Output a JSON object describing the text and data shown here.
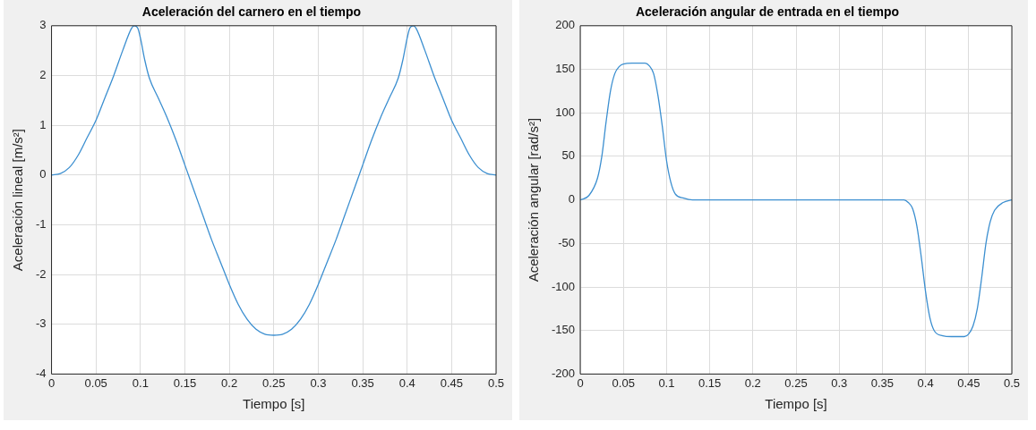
{
  "chart_data": [
    {
      "type": "line",
      "title": "Aceleración del carnero en el tiempo",
      "xlabel": "Tiempo [s]",
      "ylabel": "Aceleración lineal [m/s²]",
      "xlim": [
        0,
        0.5
      ],
      "xticks": [
        0,
        0.05,
        0.1,
        0.15,
        0.2,
        0.25,
        0.3,
        0.35,
        0.4,
        0.45,
        0.5
      ],
      "ylim": [
        -4,
        3
      ],
      "yticks": [
        -4,
        -3,
        -2,
        -1,
        0,
        1,
        2,
        3
      ],
      "grid": true,
      "legend": false,
      "line_style": "solid",
      "marker": "none",
      "x": [
        0,
        0.01,
        0.02,
        0.03,
        0.04,
        0.05,
        0.06,
        0.07,
        0.08,
        0.09,
        0.093,
        0.097,
        0.1,
        0.105,
        0.11,
        0.12,
        0.13,
        0.14,
        0.15,
        0.16,
        0.17,
        0.18,
        0.19,
        0.2,
        0.21,
        0.22,
        0.23,
        0.24,
        0.25,
        0.26,
        0.27,
        0.28,
        0.29,
        0.3,
        0.31,
        0.32,
        0.33,
        0.34,
        0.35,
        0.36,
        0.37,
        0.38,
        0.39,
        0.395,
        0.4,
        0.403,
        0.407,
        0.41,
        0.42,
        0.43,
        0.44,
        0.45,
        0.46,
        0.47,
        0.48,
        0.49,
        0.5
      ],
      "series": [
        {
          "color": "#3c8fd0",
          "values": [
            0,
            0.03,
            0.15,
            0.4,
            0.75,
            1.1,
            1.55,
            2.0,
            2.5,
            2.95,
            3.0,
            2.95,
            2.75,
            2.3,
            1.95,
            1.55,
            1.15,
            0.7,
            0.2,
            -0.3,
            -0.8,
            -1.3,
            -1.75,
            -2.2,
            -2.6,
            -2.9,
            -3.1,
            -3.2,
            -3.22,
            -3.2,
            -3.1,
            -2.9,
            -2.6,
            -2.2,
            -1.75,
            -1.3,
            -0.8,
            -0.3,
            0.2,
            0.7,
            1.15,
            1.55,
            1.95,
            2.3,
            2.75,
            2.95,
            3.0,
            2.95,
            2.5,
            2.0,
            1.55,
            1.1,
            0.75,
            0.4,
            0.15,
            0.03,
            0
          ]
        }
      ]
    },
    {
      "type": "line",
      "title": "Aceleración angular de entrada en el tiempo",
      "xlabel": "Tiempo [s]",
      "ylabel": "Aceleración angular [rad/s²]",
      "xlim": [
        0,
        0.5
      ],
      "xticks": [
        0,
        0.05,
        0.1,
        0.15,
        0.2,
        0.25,
        0.3,
        0.35,
        0.4,
        0.45,
        0.5
      ],
      "ylim": [
        -200,
        200
      ],
      "yticks": [
        -200,
        -150,
        -100,
        -50,
        0,
        50,
        100,
        150,
        200
      ],
      "grid": true,
      "legend": false,
      "line_style": "solid",
      "marker": "none",
      "x": [
        0,
        0.01,
        0.02,
        0.025,
        0.03,
        0.035,
        0.04,
        0.045,
        0.05,
        0.06,
        0.075,
        0.08,
        0.085,
        0.09,
        0.095,
        0.1,
        0.105,
        0.11,
        0.12,
        0.13,
        0.375,
        0.38,
        0.385,
        0.39,
        0.395,
        0.4,
        0.405,
        0.41,
        0.42,
        0.43,
        0.445,
        0.45,
        0.455,
        0.46,
        0.465,
        0.47,
        0.475,
        0.48,
        0.49,
        0.5
      ],
      "series": [
        {
          "color": "#3c8fd0",
          "values": [
            0,
            5,
            25,
            50,
            90,
            125,
            145,
            153,
            156,
            157,
            157,
            154,
            145,
            120,
            85,
            45,
            20,
            7,
            2,
            0,
            0,
            -3,
            -10,
            -30,
            -65,
            -105,
            -135,
            -150,
            -156,
            -157,
            -157,
            -154,
            -145,
            -125,
            -90,
            -50,
            -25,
            -12,
            -3,
            0
          ]
        }
      ]
    }
  ]
}
